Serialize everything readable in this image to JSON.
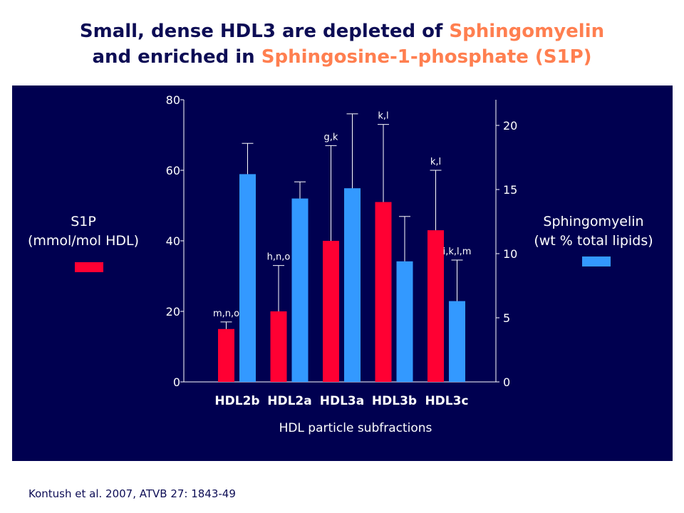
{
  "title": {
    "line1_pre": "Small, dense HDL3 are depleted of ",
    "line1_highlight": "Sphingomyelin",
    "line2_pre": "and enriched in ",
    "line2_highlight": "Sphingosine-1-phosphate (S1P)"
  },
  "left_legend": {
    "line1": "S1P",
    "line2": "(mmol/mol HDL)"
  },
  "right_legend": {
    "line1": "Sphingomyelin",
    "line2": "(wt % total lipids)"
  },
  "citation": "Kontush et al. 2007, ATVB 27: 1843-49",
  "colors": {
    "background": "#000050",
    "s1p": "#ff0033",
    "sphingomyelin": "#3399ff",
    "highlight": "#ff7f50",
    "title": "#0d0d55"
  },
  "chart_data": {
    "type": "bar",
    "xlabel": "HDL particle subfractions",
    "categories": [
      "HDL2b",
      "HDL2a",
      "HDL3a",
      "HDL3b",
      "HDL3c"
    ],
    "left_axis": {
      "label": "S1P (mmol/mol HDL)",
      "ylim": [
        0,
        80
      ],
      "ticks": [
        0,
        20,
        40,
        60,
        80
      ]
    },
    "right_axis": {
      "label": "Sphingomyelin (wt % total lipids)",
      "ylim": [
        0,
        22
      ],
      "ticks": [
        0,
        5,
        10,
        15,
        20
      ]
    },
    "series": [
      {
        "name": "S1P",
        "axis": "left",
        "color": "#ff0033",
        "values": [
          15,
          20,
          40,
          51,
          43
        ],
        "error_upper": [
          17,
          33,
          67,
          73,
          60
        ]
      },
      {
        "name": "Sphingomyelin",
        "axis": "right",
        "color": "#3399ff",
        "values": [
          16.2,
          14.3,
          15.1,
          9.4,
          6.3
        ],
        "error_upper": [
          18.6,
          15.6,
          20.9,
          12.9,
          9.5
        ]
      }
    ],
    "annotations": [
      {
        "category": "HDL2b",
        "series": "S1P",
        "text": "m,n,o"
      },
      {
        "category": "HDL2a",
        "series": "S1P",
        "text": "h,n,o"
      },
      {
        "category": "HDL3a",
        "series": "S1P",
        "text": "g,k"
      },
      {
        "category": "HDL3b",
        "series": "S1P",
        "text": "k,l"
      },
      {
        "category": "HDL3c",
        "series": "S1P",
        "text": "k,l"
      },
      {
        "category": "HDL3c",
        "series": "Sphingomyelin",
        "text": "i,k,l,m"
      }
    ],
    "grid": false
  }
}
